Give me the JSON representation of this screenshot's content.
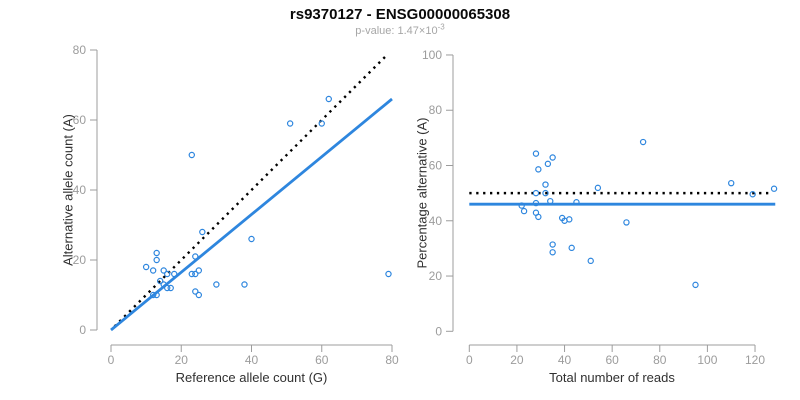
{
  "title": "rs9370127 - ENSG00000065308",
  "subtitle": {
    "text": "p-value: 1.47×10",
    "exponent": "-3"
  },
  "colors": {
    "background": "#ffffff",
    "point_stroke": "#2e86de",
    "fit_line": "#2e86de",
    "reference_line": "#000000",
    "axis": "#9c9c9c",
    "tick_label": "#9c9c9c",
    "axis_title": "#303030",
    "title": "#0a0a0a",
    "subtitle": "#a6a6a6"
  },
  "chart_data": [
    {
      "type": "scatter",
      "marker": "open-circle",
      "xlabel": "Reference allele count (G)",
      "ylabel": "Alternative allele count (A)",
      "xlim": [
        0,
        80
      ],
      "ylim": [
        0,
        80
      ],
      "xticks": [
        0,
        20,
        40,
        60,
        80
      ],
      "yticks": [
        0,
        20,
        40,
        60,
        80
      ],
      "grid": false,
      "points": [
        [
          23,
          50
        ],
        [
          51,
          59
        ],
        [
          60,
          59
        ],
        [
          62,
          66
        ],
        [
          26,
          28
        ],
        [
          40,
          26
        ],
        [
          24,
          21
        ],
        [
          13,
          22
        ],
        [
          13,
          20
        ],
        [
          10,
          18
        ],
        [
          12,
          17
        ],
        [
          15,
          17
        ],
        [
          16,
          16
        ],
        [
          18,
          16
        ],
        [
          23,
          16
        ],
        [
          24,
          16
        ],
        [
          25,
          17
        ],
        [
          14,
          14
        ],
        [
          15,
          13
        ],
        [
          16,
          12
        ],
        [
          17,
          12
        ],
        [
          30,
          13
        ],
        [
          38,
          13
        ],
        [
          24,
          11
        ],
        [
          25,
          10
        ],
        [
          13,
          10
        ],
        [
          12,
          10
        ],
        [
          79,
          16
        ]
      ],
      "lines": [
        {
          "name": "identity-line",
          "style": "dotted",
          "color": "#000000",
          "x": [
            1,
            78.5
          ],
          "y": [
            1,
            78.5
          ]
        },
        {
          "name": "fit-line",
          "style": "solid",
          "color": "#2e86de",
          "x": [
            0,
            80
          ],
          "y": [
            0,
            66
          ]
        }
      ]
    },
    {
      "type": "scatter",
      "marker": "open-circle",
      "xlabel": "Total number of reads",
      "ylabel": "Percentage alternative (A)",
      "xlim": [
        0,
        128
      ],
      "ylim": [
        0,
        100
      ],
      "xticks": [
        0,
        20,
        40,
        60,
        80,
        100,
        120
      ],
      "yticks": [
        0,
        20,
        40,
        60,
        80,
        100
      ],
      "grid": false,
      "points": [
        [
          73,
          68.5
        ],
        [
          110,
          53.6
        ],
        [
          119,
          49.6
        ],
        [
          128,
          51.6
        ],
        [
          54,
          51.9
        ],
        [
          66,
          39.4
        ],
        [
          45,
          46.7
        ],
        [
          35,
          62.9
        ],
        [
          33,
          60.6
        ],
        [
          28,
          64.3
        ],
        [
          29,
          58.6
        ],
        [
          32,
          53.1
        ],
        [
          32,
          50.0
        ],
        [
          34,
          47.1
        ],
        [
          39,
          41.0
        ],
        [
          40,
          40.0
        ],
        [
          42,
          40.5
        ],
        [
          28,
          50.0
        ],
        [
          28,
          46.4
        ],
        [
          28,
          42.9
        ],
        [
          29,
          41.4
        ],
        [
          43,
          30.2
        ],
        [
          51,
          25.5
        ],
        [
          35,
          31.4
        ],
        [
          35,
          28.6
        ],
        [
          23,
          43.5
        ],
        [
          22,
          45.5
        ],
        [
          95,
          16.8
        ]
      ],
      "lines": [
        {
          "name": "expected-50pct-line",
          "style": "dotted",
          "color": "#000000",
          "x": [
            0,
            126
          ],
          "y": [
            50,
            50
          ]
        },
        {
          "name": "mean-pct-line",
          "style": "solid",
          "color": "#2e86de",
          "x": [
            0,
            128.5
          ],
          "y": [
            46,
            46
          ]
        }
      ]
    }
  ]
}
